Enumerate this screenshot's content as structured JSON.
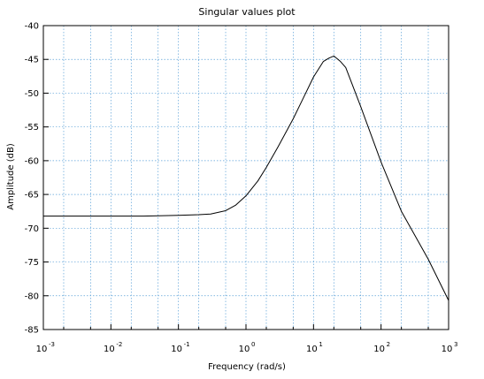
{
  "chart_data": {
    "type": "line",
    "title": "Singular values plot",
    "xlabel": "Frequency (rad/s)",
    "ylabel": "Amplitude (dB)",
    "xscale": "log",
    "xlim": [
      0.001,
      1000
    ],
    "ylim": [
      -85,
      -40
    ],
    "grid": true,
    "legend": "none",
    "colors": {
      "line": "#000000",
      "grid": "#5aa0d8",
      "frame": "#000000"
    },
    "x_ticks": [
      {
        "base": "10",
        "exp": "-3"
      },
      {
        "base": "10",
        "exp": "-2"
      },
      {
        "base": "10",
        "exp": "-1"
      },
      {
        "base": "10",
        "exp": "0"
      },
      {
        "base": "10",
        "exp": "1"
      },
      {
        "base": "10",
        "exp": "2"
      },
      {
        "base": "10",
        "exp": "3"
      }
    ],
    "y_ticks": [
      "-40",
      "-45",
      "-50",
      "-55",
      "-60",
      "-65",
      "-70",
      "-75",
      "-80",
      "-85"
    ],
    "series": [
      {
        "x": [
          0.001,
          0.003,
          0.01,
          0.03,
          0.1,
          0.2,
          0.3,
          0.5,
          0.7,
          1,
          1.5,
          2,
          3,
          5,
          7,
          10,
          14,
          17,
          20,
          25,
          30,
          50,
          100,
          200,
          500,
          1000
        ],
        "y": [
          -68.2,
          -68.2,
          -68.2,
          -68.2,
          -68.1,
          -68.0,
          -67.9,
          -67.4,
          -66.6,
          -65.2,
          -63.0,
          -61.0,
          -57.9,
          -53.8,
          -50.8,
          -47.6,
          -45.3,
          -44.8,
          -44.5,
          -45.3,
          -46.2,
          -52.0,
          -60.2,
          -67.5,
          -74.6,
          -80.7
        ]
      }
    ]
  }
}
